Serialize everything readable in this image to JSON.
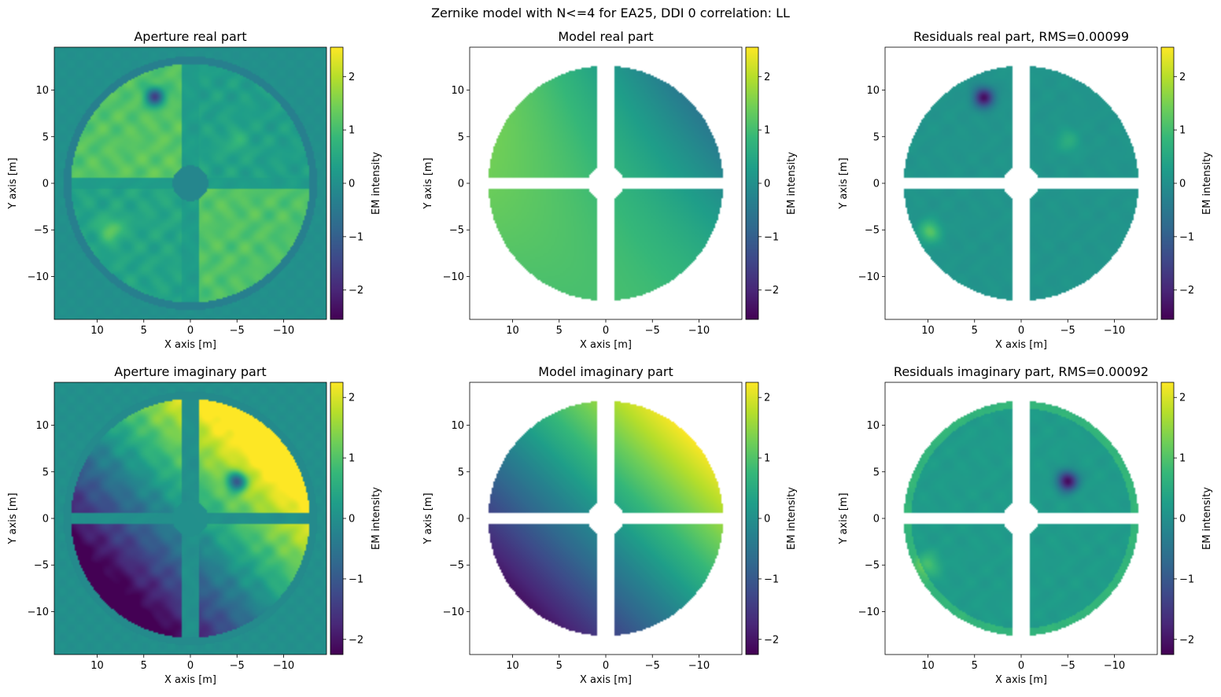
{
  "figure": {
    "suptitle": "Zernike model with N<=4 for EA25, DDI 0 correlation: LL"
  },
  "colormap": {
    "name": "viridis",
    "stops": [
      "#440154",
      "#482878",
      "#3e4989",
      "#31688e",
      "#26828e",
      "#1f9e89",
      "#35b779",
      "#6ece58",
      "#b5de2b",
      "#fde725"
    ]
  },
  "chart_data": [
    {
      "type": "heatmap",
      "title": "Aperture real part",
      "xlabel": "X axis [m]",
      "ylabel": "Y axis [m]",
      "xlim": [
        14.6,
        -14.6
      ],
      "ylim": [
        -14.6,
        14.6
      ],
      "xticks": [
        10,
        5,
        0,
        -5,
        -10
      ],
      "yticks": [
        10,
        5,
        0,
        -5,
        -10
      ],
      "xtick_labels": [
        "10",
        "5",
        "0",
        "−5",
        "−10"
      ],
      "ytick_labels": [
        "10",
        "5",
        "0",
        "−5",
        "−10"
      ],
      "colorbar": {
        "label": "EM intensity",
        "vmin": -2.55,
        "vmax": 2.55,
        "ticks": [
          2,
          1,
          0,
          -1,
          -2
        ],
        "tick_labels": [
          "2",
          "1",
          "0",
          "−1",
          "−2"
        ]
      },
      "pattern": "aperture-real"
    },
    {
      "type": "heatmap",
      "title": "Model real part",
      "xlabel": "X axis [m]",
      "ylabel": "Y axis [m]",
      "xlim": [
        14.6,
        -14.6
      ],
      "ylim": [
        -14.6,
        14.6
      ],
      "xticks": [
        10,
        5,
        0,
        -5,
        -10
      ],
      "yticks": [
        10,
        5,
        0,
        -5,
        -10
      ],
      "xtick_labels": [
        "10",
        "5",
        "0",
        "−5",
        "−10"
      ],
      "ytick_labels": [
        "10",
        "5",
        "0",
        "−5",
        "−10"
      ],
      "colorbar": {
        "label": "EM intensity",
        "vmin": -2.55,
        "vmax": 2.55,
        "ticks": [
          2,
          1,
          0,
          -1,
          -2
        ],
        "tick_labels": [
          "2",
          "1",
          "0",
          "−1",
          "−2"
        ]
      },
      "pattern": "model-real"
    },
    {
      "type": "heatmap",
      "title": "Residuals real part, RMS=0.00099",
      "xlabel": "X axis [m]",
      "ylabel": "Y axis [m]",
      "xlim": [
        14.6,
        -14.6
      ],
      "ylim": [
        -14.6,
        14.6
      ],
      "xticks": [
        10,
        5,
        0,
        -5,
        -10
      ],
      "yticks": [
        10,
        5,
        0,
        -5,
        -10
      ],
      "xtick_labels": [
        "10",
        "5",
        "0",
        "−5",
        "−10"
      ],
      "ytick_labels": [
        "10",
        "5",
        "0",
        "−5",
        "−10"
      ],
      "colorbar": {
        "label": "EM intensity",
        "vmin": -2.55,
        "vmax": 2.55,
        "ticks": [
          2,
          1,
          0,
          -1,
          -2
        ],
        "tick_labels": [
          "2",
          "1",
          "0",
          "−1",
          "−2"
        ]
      },
      "pattern": "residual-real"
    },
    {
      "type": "heatmap",
      "title": "Aperture imaginary part",
      "xlabel": "X axis [m]",
      "ylabel": "Y axis [m]",
      "xlim": [
        14.6,
        -14.6
      ],
      "ylim": [
        -14.6,
        14.6
      ],
      "xticks": [
        10,
        5,
        0,
        -5,
        -10
      ],
      "yticks": [
        10,
        5,
        0,
        -5,
        -10
      ],
      "xtick_labels": [
        "10",
        "5",
        "0",
        "−5",
        "−10"
      ],
      "ytick_labels": [
        "10",
        "5",
        "0",
        "−5",
        "−10"
      ],
      "colorbar": {
        "label": "EM intensity",
        "vmin": -2.25,
        "vmax": 2.25,
        "ticks": [
          2,
          1,
          0,
          -1,
          -2
        ],
        "tick_labels": [
          "2",
          "1",
          "0",
          "−1",
          "−2"
        ]
      },
      "pattern": "aperture-imag"
    },
    {
      "type": "heatmap",
      "title": "Model imaginary part",
      "xlabel": "X axis [m]",
      "ylabel": "Y axis [m]",
      "xlim": [
        14.6,
        -14.6
      ],
      "ylim": [
        -14.6,
        14.6
      ],
      "xticks": [
        10,
        5,
        0,
        -5,
        -10
      ],
      "yticks": [
        10,
        5,
        0,
        -5,
        -10
      ],
      "xtick_labels": [
        "10",
        "5",
        "0",
        "−5",
        "−10"
      ],
      "ytick_labels": [
        "10",
        "5",
        "0",
        "−5",
        "−10"
      ],
      "colorbar": {
        "label": "EM intensity",
        "vmin": -2.25,
        "vmax": 2.25,
        "ticks": [
          2,
          1,
          0,
          -1,
          -2
        ],
        "tick_labels": [
          "2",
          "1",
          "0",
          "−1",
          "−2"
        ]
      },
      "pattern": "model-imag"
    },
    {
      "type": "heatmap",
      "title": "Residuals imaginary part, RMS=0.00092",
      "xlabel": "X axis [m]",
      "ylabel": "Y axis [m]",
      "xlim": [
        14.6,
        -14.6
      ],
      "ylim": [
        -14.6,
        14.6
      ],
      "xticks": [
        10,
        5,
        0,
        -5,
        -10
      ],
      "yticks": [
        10,
        5,
        0,
        -5,
        -10
      ],
      "xtick_labels": [
        "10",
        "5",
        "0",
        "−5",
        "−10"
      ],
      "ytick_labels": [
        "10",
        "5",
        "0",
        "−5",
        "−10"
      ],
      "colorbar": {
        "label": "EM intensity",
        "vmin": -2.25,
        "vmax": 2.25,
        "ticks": [
          2,
          1,
          0,
          -1,
          -2
        ],
        "tick_labels": [
          "2",
          "1",
          "0",
          "−1",
          "−2"
        ]
      },
      "pattern": "residual-imag"
    }
  ]
}
